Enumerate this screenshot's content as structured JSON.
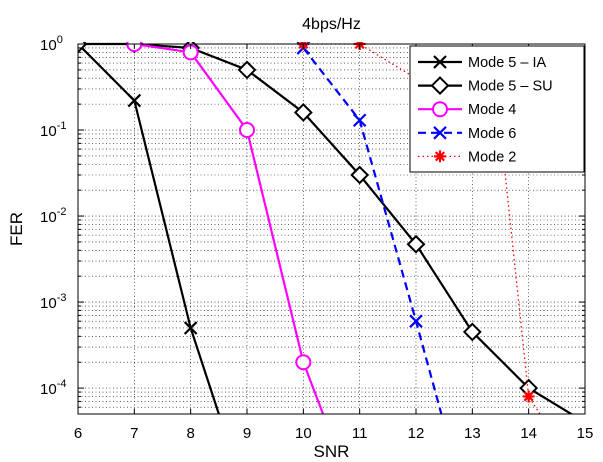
{
  "chart_data": {
    "type": "line",
    "title": "4bps/Hz",
    "xlabel": "SNR",
    "ylabel": "FER",
    "xlim": [
      6,
      15
    ],
    "ylim": [
      5e-05,
      1
    ],
    "yscale": "log",
    "x_ticks": [
      "6",
      "7",
      "8",
      "9",
      "10",
      "11",
      "12",
      "13",
      "14",
      "15"
    ],
    "y_ticks": [
      {
        "value": 1,
        "base": "10",
        "exp": "0"
      },
      {
        "value": 0.1,
        "base": "10",
        "exp": "-1"
      },
      {
        "value": 0.01,
        "base": "10",
        "exp": "-2"
      },
      {
        "value": 0.001,
        "base": "10",
        "exp": "-3"
      },
      {
        "value": 0.0001,
        "base": "10",
        "exp": "-4"
      }
    ],
    "grid": true,
    "legend_position": "top-right",
    "series": [
      {
        "name": "Mode 5 – IA",
        "color": "#000000",
        "dash": "solid",
        "marker": "x",
        "x": [
          6,
          7,
          8,
          8.5
        ],
        "y": [
          1,
          0.22,
          0.0005,
          5e-05
        ]
      },
      {
        "name": "Mode 5 – SU",
        "color": "#000000",
        "dash": "solid",
        "marker": "diamond",
        "x": [
          6,
          7,
          8,
          9,
          10,
          11,
          12,
          13,
          14,
          15
        ],
        "y": [
          1,
          1,
          0.9,
          0.5,
          0.16,
          0.03,
          0.0047,
          0.00045,
          0.0001,
          4e-05
        ]
      },
      {
        "name": "Mode 4",
        "color": "#ff00ff",
        "dash": "solid",
        "marker": "circle",
        "x": [
          7,
          8,
          9,
          10,
          10.35
        ],
        "y": [
          1,
          0.8,
          0.1,
          0.0002,
          5e-05
        ]
      },
      {
        "name": "Mode 6",
        "color": "#0000ff",
        "dash": "dashed",
        "marker": "x",
        "x": [
          10,
          11,
          12,
          12.45
        ],
        "y": [
          0.9,
          0.13,
          0.0006,
          5e-05
        ]
      },
      {
        "name": "Mode 2",
        "color": "#ff0000",
        "dash": "dotted",
        "marker": "asterisk",
        "x": [
          10,
          11,
          13.5,
          14,
          14.2
        ],
        "y": [
          1,
          1,
          0.1,
          8e-05,
          5e-05
        ]
      }
    ]
  }
}
